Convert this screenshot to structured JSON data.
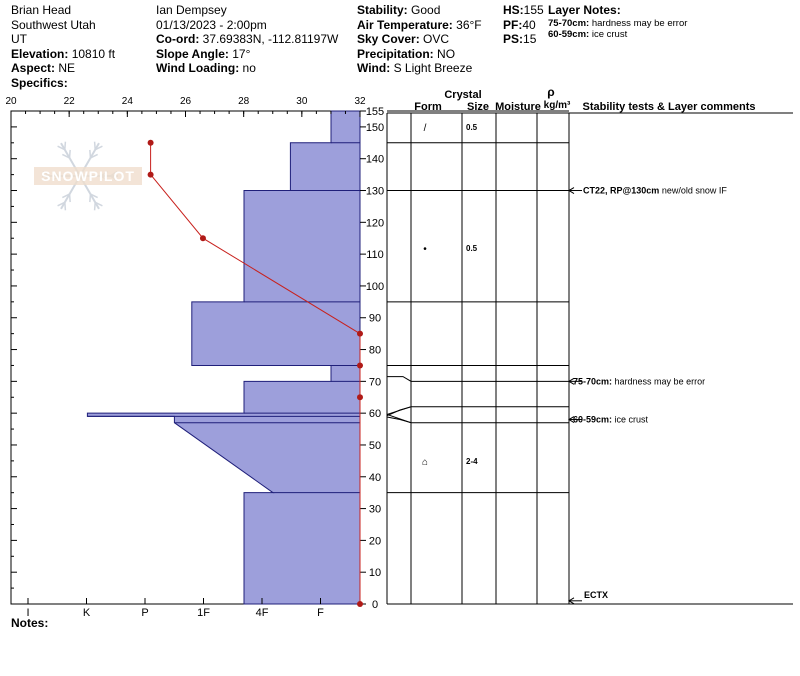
{
  "header": {
    "col1": {
      "location": "Brian Head",
      "region": "Southwest Utah",
      "state": "UT",
      "elevation_label": "Elevation:",
      "elevation": "10810 ft",
      "aspect_label": "Aspect:",
      "aspect": "NE",
      "specifics_label": "Specifics:"
    },
    "col2": {
      "observer": "Ian Dempsey",
      "datetime": "01/13/2023 - 2:00pm",
      "coord_label": "Co-ord:",
      "coord": "37.69383N, -112.81197W",
      "slope_label": "Slope Angle:",
      "slope": "17°",
      "wind_loading_label": "Wind Loading:",
      "wind_loading": "no"
    },
    "col3": {
      "stability_label": "Stability:",
      "stability": "Good",
      "air_temp_label": "Air Temperature:",
      "air_temp": "36°F",
      "sky_label": "Sky Cover:",
      "sky": "OVC",
      "precip_label": "Precipitation:",
      "precip": "NO",
      "wind_label": "Wind:",
      "wind": "S Light Breeze"
    },
    "col4": {
      "hs_label": "HS:",
      "hs": "155",
      "pf_label": "PF:",
      "pf": "40",
      "ps_label": "PS:",
      "ps": "15"
    },
    "layer_notes": {
      "title": "Layer Notes:",
      "items": [
        {
          "range": "75-70cm:",
          "text": "hardness may be error"
        },
        {
          "range": "60-59cm:",
          "text": "ice crust"
        }
      ]
    }
  },
  "logo_text": "SNOWPILOT",
  "notes_label": "Notes:",
  "chart_data": {
    "type": "snow_profile",
    "temperature_axis": {
      "ticks": [
        "20",
        "22",
        "24",
        "26",
        "28",
        "30",
        "32"
      ],
      "range": [
        20,
        32
      ],
      "unit": "°F"
    },
    "height_axis": {
      "ticks": [
        0,
        10,
        20,
        30,
        40,
        50,
        60,
        70,
        80,
        90,
        100,
        110,
        120,
        130,
        140,
        150,
        155
      ],
      "range": [
        0,
        155
      ],
      "unit": "cm"
    },
    "hardness_axis": {
      "labels": [
        "I",
        "K",
        "P",
        "1F",
        "4F",
        "F"
      ]
    },
    "hardness_profile": [
      {
        "bottom": 0,
        "top": 35,
        "hardness": 2.0
      },
      {
        "bottom": 35,
        "top": 57,
        "hardness_bottom": 1.5,
        "hardness_top": 3.2
      },
      {
        "bottom": 57,
        "top": 59,
        "hardness": 3.2
      },
      {
        "bottom": 59,
        "top": 60,
        "hardness": 4.7
      },
      {
        "bottom": 60,
        "top": 70,
        "hardness": 2.0
      },
      {
        "bottom": 70,
        "top": 75,
        "hardness": 0.5
      },
      {
        "bottom": 75,
        "top": 95,
        "hardness": 2.9
      },
      {
        "bottom": 95,
        "top": 130,
        "hardness": 2.0
      },
      {
        "bottom": 130,
        "top": 145,
        "hardness": 1.2
      },
      {
        "bottom": 145,
        "top": 155,
        "hardness": 0.5
      }
    ],
    "temperature_profile": [
      {
        "height": 0,
        "temp": 32
      },
      {
        "height": 65,
        "temp": 32
      },
      {
        "height": 75,
        "temp": 32
      },
      {
        "height": 85,
        "temp": 32
      },
      {
        "height": 115,
        "temp": 26.6
      },
      {
        "height": 135,
        "temp": 24.8
      },
      {
        "height": 145,
        "temp": 24.8
      }
    ],
    "columns": {
      "crystal_label": "Crystal",
      "form_label": "Form",
      "size_label": "Size",
      "moisture_label": "Moisture",
      "rho_label": "ρ",
      "density_unit": "kg/m³",
      "comments_label": "Stability tests & Layer comments"
    },
    "layer_boundaries": [
      155,
      145,
      130,
      95,
      75,
      70,
      62,
      57,
      35,
      0
    ],
    "crystal_sizes": [
      {
        "height": 150,
        "size": "0.5",
        "form": "/"
      },
      {
        "height": 112,
        "size": "0.5",
        "form": "•"
      },
      {
        "height": 45,
        "size": "2-4",
        "form": "⌂"
      }
    ],
    "comments": [
      {
        "height": 130,
        "label": "CT22, RP@130cm",
        "text": "new/old snow IF"
      },
      {
        "height": 70,
        "label": "75-70cm:",
        "text": "hardness may be error"
      },
      {
        "height": 58,
        "label": "60-59cm:",
        "text": "ice crust"
      },
      {
        "height": 1,
        "label": "ECTX",
        "text": ""
      }
    ]
  }
}
